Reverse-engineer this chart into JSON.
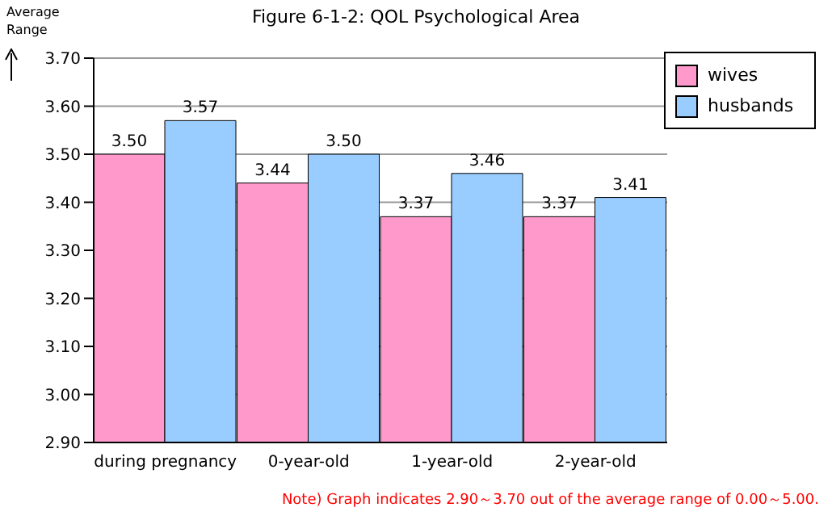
{
  "chart_data": {
    "type": "bar",
    "title": "Figure 6-1-2:  QOL Psychological Area",
    "ylabel": "Average Range",
    "categories": [
      "during pregnancy",
      "0-year-old",
      "1-year-old",
      "2-year-old"
    ],
    "series": [
      {
        "name": "wives",
        "color": "#ff99cc",
        "values": [
          3.5,
          3.44,
          3.37,
          3.37
        ],
        "value_labels": [
          "3.50",
          "3.44",
          "3.37",
          "3.37"
        ]
      },
      {
        "name": "husbands",
        "color": "#99ccff",
        "values": [
          3.57,
          3.5,
          3.46,
          3.41
        ],
        "value_labels": [
          "3.57",
          "3.50",
          "3.46",
          "3.41"
        ]
      }
    ],
    "ylim": [
      2.9,
      3.7
    ],
    "yticks": [
      {
        "value": 2.9,
        "label": "2.90"
      },
      {
        "value": 3.0,
        "label": "3.00"
      },
      {
        "value": 3.1,
        "label": "3.10"
      },
      {
        "value": 3.2,
        "label": "3.20"
      },
      {
        "value": 3.3,
        "label": "3.30"
      },
      {
        "value": 3.4,
        "label": "3.40"
      },
      {
        "value": 3.5,
        "label": "3.50"
      },
      {
        "value": 3.6,
        "label": "3.60"
      },
      {
        "value": 3.7,
        "label": "3.70"
      }
    ],
    "grid": "y",
    "legend": "top right",
    "annotations": [
      "Note) Graph indicates 2.90～3.70 out of the average range of 0.00～5.00."
    ]
  }
}
